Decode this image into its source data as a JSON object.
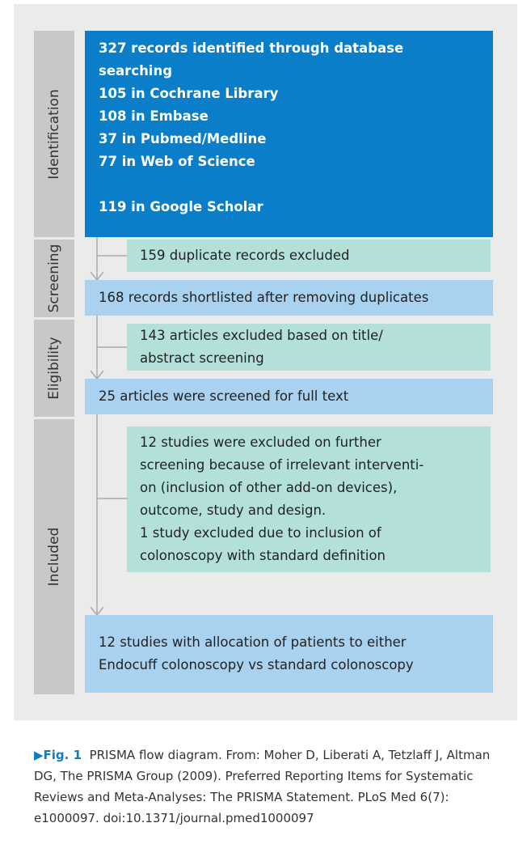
{
  "phases": [
    {
      "label": "Identification"
    },
    {
      "label": "Screening"
    },
    {
      "label": "Eligibility"
    },
    {
      "label": "Included"
    }
  ],
  "identification": {
    "lines": [
      "327 records identified through database",
      "searching",
      "105 in Cochrane Library",
      "108 in Embase",
      "37 in Pubmed/Medline",
      "77 in Web of Science",
      "119 in Google Scholar"
    ]
  },
  "screening": {
    "excluded": [
      "159 duplicate records excluded"
    ],
    "result": [
      "168 records shortlisted after removing duplicates"
    ]
  },
  "eligibility": {
    "excluded": [
      "143 articles excluded based on title/",
      "abstract screening"
    ],
    "result": [
      "25 articles were screened for full text"
    ]
  },
  "included": {
    "excluded": [
      "12 studies were excluded on further",
      "screening because of irrelevant interventi-",
      "on (inclusion of other add-on devices),",
      "outcome, study and design.",
      "1 study excluded due to inclusion of",
      "colonoscopy with standard definition"
    ],
    "result": [
      "12 studies with allocation of patients to either",
      "Endocuff colonoscopy vs standard colonoscopy"
    ]
  },
  "caption": {
    "label": "Fig. 1",
    "text": "PRISMA flow diagram. From: Moher D, Liberati A, Tetzlaff J, Altman DG, The PRISMA Group (2009). Preferred Reporting Items for Systematic Reviews and Meta-Analyses: The PRISMA Statement. PLoS Med 6(7): e1000097. doi:10.1371/journal.pmed1000097"
  }
}
